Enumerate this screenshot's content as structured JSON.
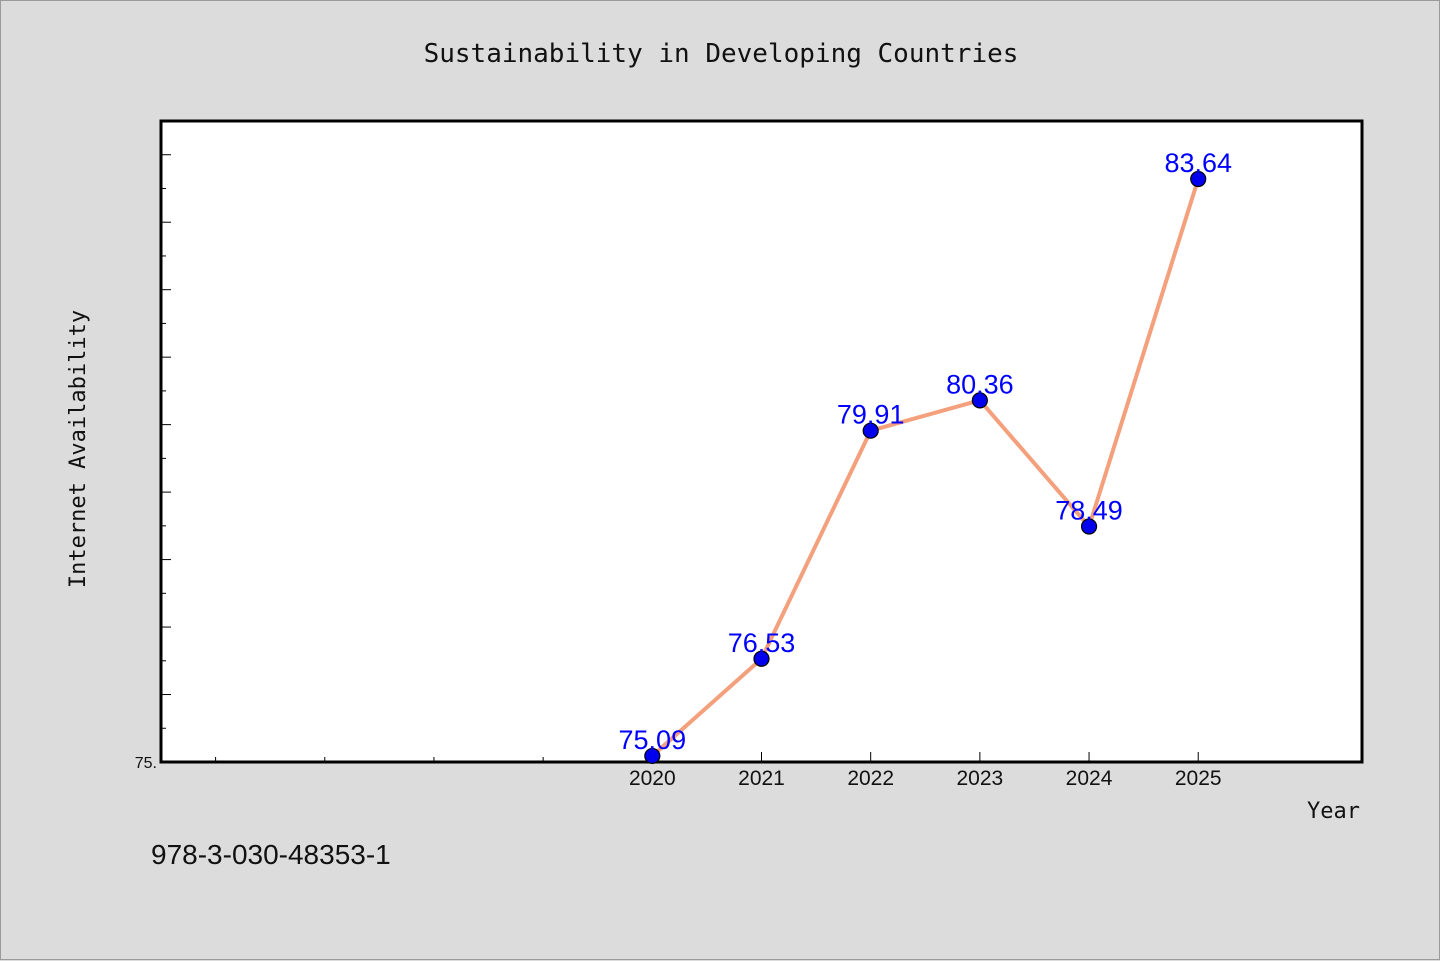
{
  "chart_data": {
    "type": "line",
    "title": "Sustainability in Developing Countries",
    "xlabel": "Year",
    "ylabel": "Internet Availability",
    "x": [
      2020,
      2021,
      2022,
      2023,
      2024,
      2025
    ],
    "x_tick_labels": [
      "2020",
      "2021",
      "2022",
      "2023",
      "2024",
      "2025"
    ],
    "xlim": [
      2015.5,
      2026.5
    ],
    "ylim": [
      75.0,
      84.5
    ],
    "y_tick_labels": [
      "75."
    ],
    "y_tick_values": [
      75.0
    ],
    "series": [
      {
        "values": [
          75.09,
          76.53,
          79.91,
          80.36,
          78.49,
          83.64
        ],
        "labels": [
          "75.09",
          "76.53",
          "79.91",
          "80.36",
          "78.49",
          "83.64"
        ]
      }
    ],
    "grid": false,
    "legend": "none",
    "colors": {
      "line": "#f4a07c",
      "marker": "#0000ee",
      "data_label": "#0000ff",
      "plot_background": "#ffffff",
      "figure_background": "#dcdcdc"
    }
  },
  "footer": {
    "isbn": "978-3-030-48353-1"
  }
}
